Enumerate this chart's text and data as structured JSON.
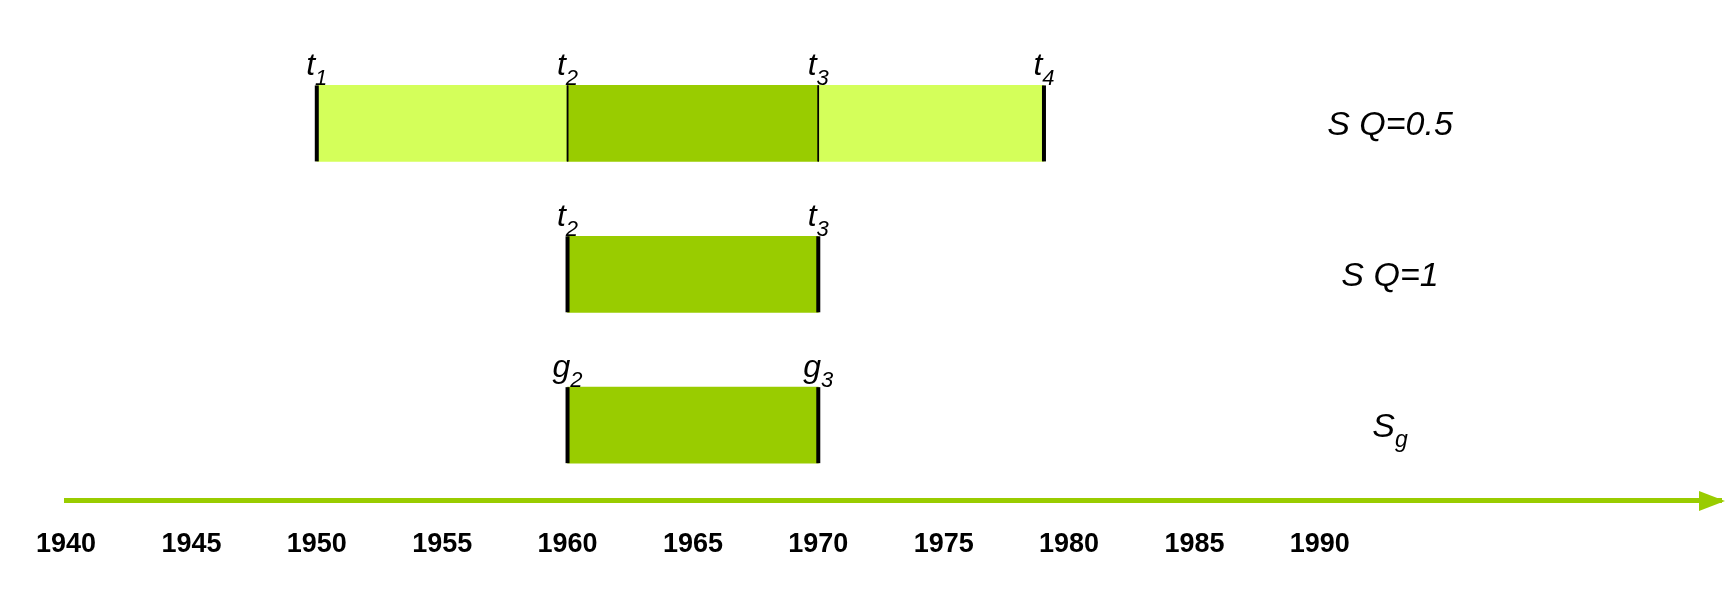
{
  "chart_data": {
    "type": "bar",
    "orientation": "horizontal",
    "categories": [
      "S Q=0.5",
      "S Q=1",
      "S$_{g}$"
    ],
    "series": [
      {
        "color": "#d4ff5a",
        "base": [
          1950,
          null,
          null
        ],
        "values": [
          10,
          null,
          null
        ]
      },
      {
        "color": "#99cc00",
        "base": [
          1960,
          1960,
          1960
        ],
        "values": [
          10,
          10,
          10
        ]
      },
      {
        "color": "#d4ff5a",
        "base": [
          1970,
          null,
          null
        ],
        "values": [
          9,
          null,
          null
        ]
      }
    ],
    "xlim": [
      1940,
      2006
    ],
    "xticks": [
      1940,
      1945,
      1950,
      1955,
      1960,
      1965,
      1970,
      1975,
      1980,
      1985,
      1990
    ],
    "annotations": [
      {
        "text": "t$_{1}$",
        "x": 1950,
        "y": "S Q=0.5"
      },
      {
        "text": "t$_{2}$",
        "x": 1960,
        "y": "S Q=0.5"
      },
      {
        "text": "t$_{3}$",
        "x": 1970,
        "y": "S Q=0.5"
      },
      {
        "text": "t$_{4}$",
        "x": 1979,
        "y": "S Q=0.5"
      },
      {
        "text": "t$_{2}$",
        "x": 1960,
        "y": "S Q=1"
      },
      {
        "text": "t$_{3}$",
        "x": 1970,
        "y": "S Q=1"
      },
      {
        "text": "g$_{2}$",
        "x": 1960,
        "y": "S$_{g}$"
      },
      {
        "text": "g$_{3}$",
        "x": 1970,
        "y": "S$_{g}$"
      }
    ]
  }
}
